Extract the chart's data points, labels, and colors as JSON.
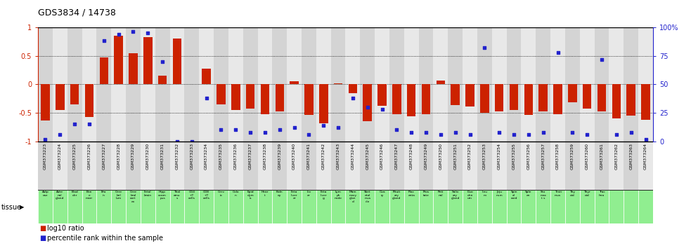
{
  "title": "GDS3834 / 14738",
  "gsm_labels": [
    "GSM373223",
    "GSM373224",
    "GSM373225",
    "GSM373226",
    "GSM373227",
    "GSM373228",
    "GSM373229",
    "GSM373230",
    "GSM373231",
    "GSM373232",
    "GSM373233",
    "GSM373234",
    "GSM373235",
    "GSM373236",
    "GSM373237",
    "GSM373238",
    "GSM373239",
    "GSM373240",
    "GSM373241",
    "GSM373242",
    "GSM373243",
    "GSM373244",
    "GSM373245",
    "GSM373246",
    "GSM373247",
    "GSM373248",
    "GSM373249",
    "GSM373250",
    "GSM373251",
    "GSM373252",
    "GSM373253",
    "GSM373254",
    "GSM373255",
    "GSM373256",
    "GSM373257",
    "GSM373258",
    "GSM373259",
    "GSM373260",
    "GSM373261",
    "GSM373262",
    "GSM373263",
    "GSM373264"
  ],
  "tissue_row1": [
    "Adip",
    "Adre",
    "Blad",
    "Bon",
    "Bra",
    "Cere",
    "Cere",
    "Fetal",
    "Hipp",
    "Thal",
    "CD4",
    "CD8",
    "Cerv",
    "Colo",
    "Epid",
    "Hear",
    "Kidn",
    "Feta",
    "Liv",
    "Feta",
    "Lym",
    "Mam",
    "Sket",
    "Ova",
    "Pituit",
    "Plac",
    "Pros",
    "Reti",
    "Saliv",
    "Duo",
    "Ileu",
    "Jeju",
    "Spin",
    "Sple",
    "Sto",
    "Testi",
    "Thy",
    "Thyr",
    "Trac",
    "",
    "",
    ""
  ],
  "tissue_row2": [
    "ose",
    "nal",
    "der",
    "e",
    "in",
    "bel",
    "bral",
    "brain",
    "ocamp",
    "amu",
    "+ T",
    "+ T",
    "ix",
    "n",
    "dym",
    "t",
    "ney",
    "liver",
    "er",
    "liver",
    "ph",
    "mary",
    "etal",
    "ry",
    "ary",
    "enta",
    "tate",
    "nal",
    "ary",
    "den",
    "m",
    "num",
    "al",
    "en",
    "mac",
    "mus",
    "oid",
    "oid",
    "hea",
    "",
    "",
    ""
  ],
  "tissue_row3": [
    "",
    "gland",
    "",
    "marr",
    "",
    "lum",
    "cort",
    "",
    "us",
    "s",
    "cells",
    "cells",
    "",
    "",
    "is",
    "",
    "",
    "er",
    "",
    "g",
    "node",
    "glan",
    "mus",
    "",
    "gland",
    "",
    "",
    "",
    "gland",
    "um",
    "",
    "",
    "cord",
    "",
    "t s",
    "",
    "",
    "",
    "",
    "",
    "",
    ""
  ],
  "tissue_row4": [
    "",
    "",
    "",
    "",
    "",
    "",
    "ex",
    "",
    "",
    "",
    "",
    "",
    "",
    "",
    "",
    "",
    "",
    "",
    "",
    "",
    "",
    "d",
    "cle",
    "",
    "",
    "",
    "",
    "",
    "",
    "",
    "",
    "",
    "",
    "",
    "",
    "",
    "",
    "",
    "",
    "",
    "",
    ""
  ],
  "log10_ratio": [
    -0.63,
    -0.45,
    -0.35,
    -0.57,
    0.47,
    0.85,
    0.55,
    0.83,
    0.15,
    0.8,
    0.0,
    0.28,
    -0.35,
    -0.45,
    -0.43,
    -0.52,
    -0.47,
    0.05,
    -0.53,
    -0.68,
    0.02,
    -0.15,
    -0.65,
    -0.38,
    -0.52,
    -0.56,
    -0.52,
    0.07,
    -0.37,
    -0.39,
    -0.5,
    -0.48,
    -0.45,
    -0.54,
    -0.47,
    -0.52,
    -0.32,
    -0.42,
    -0.48,
    -0.6,
    -0.55,
    -0.62
  ],
  "percentile_raw": [
    2,
    6,
    15,
    15,
    88,
    94,
    96,
    95,
    70,
    0,
    0,
    38,
    10,
    10,
    8,
    8,
    10,
    12,
    6,
    14,
    12,
    38,
    30,
    28,
    10,
    8,
    8,
    6,
    8,
    6,
    82,
    8,
    6,
    6,
    8,
    78,
    8,
    6,
    72,
    6,
    8,
    2
  ],
  "bar_color": "#cc2200",
  "dot_color": "#2222cc",
  "bg_colors": [
    "#d4d4d4",
    "#e8e8e8"
  ],
  "tissue_bg_color": "#90ee90",
  "tissue_bg_alt": "#a0d8a0",
  "ylim": [
    -1,
    1
  ],
  "right_yticks": [
    0,
    25,
    50,
    75,
    100
  ],
  "left_yticks": [
    -1,
    -0.5,
    0,
    0.5,
    1
  ],
  "legend_red": "log10 ratio",
  "legend_blue": "percentile rank within the sample"
}
